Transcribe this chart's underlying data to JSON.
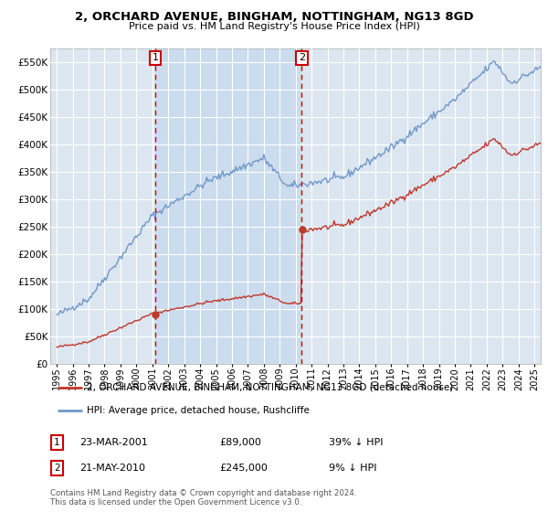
{
  "title": "2, ORCHARD AVENUE, BINGHAM, NOTTINGHAM, NG13 8GD",
  "subtitle": "Price paid vs. HM Land Registry's House Price Index (HPI)",
  "ytick_values": [
    0,
    50000,
    100000,
    150000,
    200000,
    250000,
    300000,
    350000,
    400000,
    450000,
    500000,
    550000
  ],
  "ylim": [
    0,
    575000
  ],
  "background_color": "#ffffff",
  "plot_bg_color": "#dce6f1",
  "grid_color": "#ffffff",
  "hpi_line_color": "#7098c8",
  "price_line_color": "#c0382b",
  "shade_color": "#c5d8ee",
  "sale1_date": "23-MAR-2001",
  "sale1_price": 89000,
  "sale1_pct": "39% ↓ HPI",
  "sale1_x": 2001.19,
  "sale2_date": "21-MAY-2010",
  "sale2_price": 245000,
  "sale2_pct": "9% ↓ HPI",
  "sale2_x": 2010.38,
  "legend_property": "2, ORCHARD AVENUE, BINGHAM, NOTTINGHAM, NG13 8GD (detached house)",
  "legend_hpi": "HPI: Average price, detached house, Rushcliffe",
  "footnote": "Contains HM Land Registry data © Crown copyright and database right 2024.\nThis data is licensed under the Open Government Licence v3.0.",
  "xlim_left": 1994.6,
  "xlim_right": 2025.4
}
